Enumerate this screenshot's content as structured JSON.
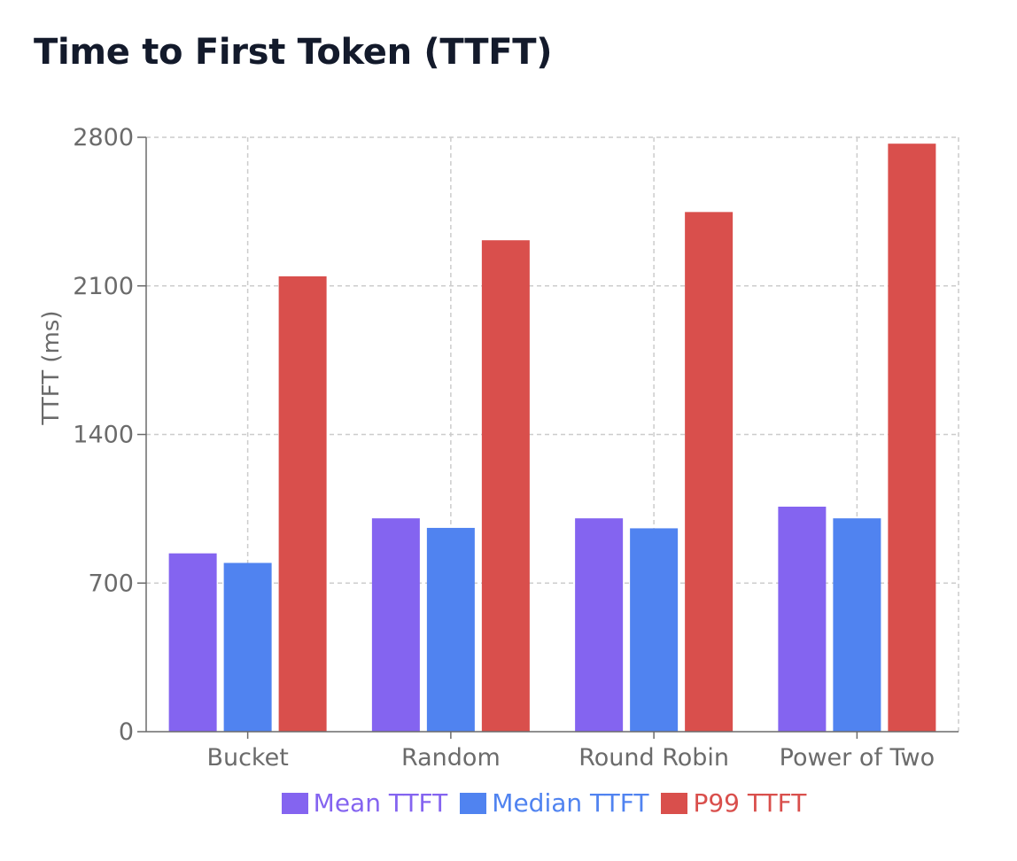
{
  "chart_data": {
    "type": "bar",
    "title": "Time to First Token (TTFT)",
    "xlabel": "",
    "ylabel": "TTFT (ms)",
    "categories": [
      "Bucket",
      "Random",
      "Round Robin",
      "Power of Two"
    ],
    "series": [
      {
        "name": "Mean TTFT",
        "color": "#8464f0",
        "values": [
          840,
          1005,
          1005,
          1060
        ]
      },
      {
        "name": "Median TTFT",
        "color": "#5083f0",
        "values": [
          795,
          960,
          958,
          1005
        ]
      },
      {
        "name": "P99 TTFT",
        "color": "#d94f4c",
        "values": [
          2145,
          2315,
          2448,
          2770
        ]
      }
    ],
    "ylim": [
      0,
      2800
    ],
    "yticks": [
      0,
      700,
      1400,
      2100,
      2800
    ],
    "grid": true,
    "legend_position": "bottom"
  }
}
